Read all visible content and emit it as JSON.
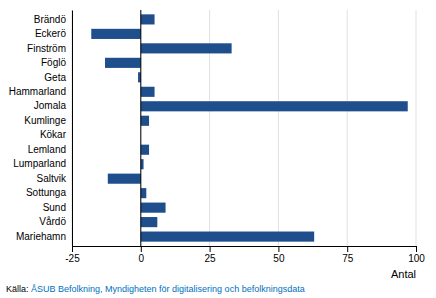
{
  "chart_data": {
    "type": "bar",
    "orientation": "horizontal",
    "categories": [
      "Brändö",
      "Eckerö",
      "Finström",
      "Föglö",
      "Geta",
      "Hammarland",
      "Jomala",
      "Kumlinge",
      "Kökar",
      "Lemland",
      "Lumparland",
      "Saltvik",
      "Sottunga",
      "Sund",
      "Vårdö",
      "Mariehamn"
    ],
    "values": [
      5,
      -18,
      33,
      -13,
      -1,
      5,
      97,
      3,
      0,
      3,
      1,
      -12,
      2,
      9,
      6,
      63
    ],
    "color": "#1F4E8C",
    "xlim": [
      -25,
      100
    ],
    "xticks": [
      -25,
      0,
      25,
      50,
      75,
      100
    ],
    "xlabel": "Antal",
    "grid": true,
    "annotations": [
      {
        "text": "Källa: ",
        "color": "#000000"
      },
      {
        "text": "ÅSUB Befolkning, Myndigheten för digitalisering och befolkningsdata",
        "color": "#0070C0"
      }
    ]
  }
}
